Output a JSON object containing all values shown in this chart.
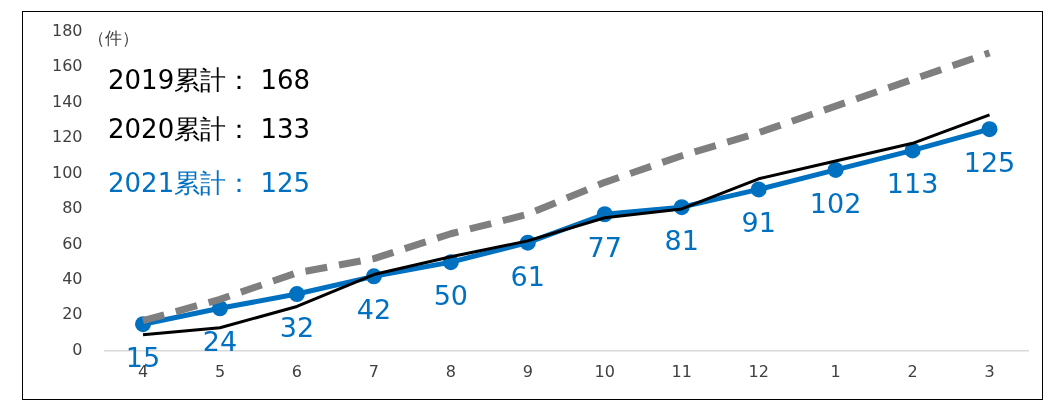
{
  "chart_data": {
    "type": "line",
    "ylabel": "（件）",
    "categories": [
      "4",
      "5",
      "6",
      "7",
      "8",
      "9",
      "10",
      "11",
      "12",
      "1",
      "2",
      "3"
    ],
    "series": [
      {
        "color": "#7f7f7f",
        "line_style": "dashed",
        "marker": "none",
        "values": [
          17,
          29,
          44,
          52,
          66,
          77,
          95,
          110,
          123,
          138,
          153,
          168
        ]
      },
      {
        "color": "#000000",
        "line_style": "solid",
        "marker": "none",
        "values": [
          9,
          13,
          25,
          43,
          53,
          62,
          75,
          80,
          97,
          107,
          117,
          133
        ]
      },
      {
        "color": "#0070c0",
        "line_style": "solid",
        "marker": "circle",
        "values": [
          15,
          24,
          32,
          42,
          50,
          61,
          77,
          81,
          91,
          102,
          113,
          125
        ],
        "value_labels": [
          "15",
          "24",
          "32",
          "42",
          "50",
          "61",
          "77",
          "81",
          "91",
          "102",
          "113",
          "125"
        ]
      }
    ],
    "annotations": [
      "2019累計： 168",
      "2020累計： 133",
      "2021累計： 125"
    ],
    "ylim": [
      0,
      180
    ],
    "yticks": [
      0,
      20,
      40,
      60,
      80,
      100,
      120,
      140,
      160,
      180
    ],
    "grid": false,
    "legend": false
  }
}
